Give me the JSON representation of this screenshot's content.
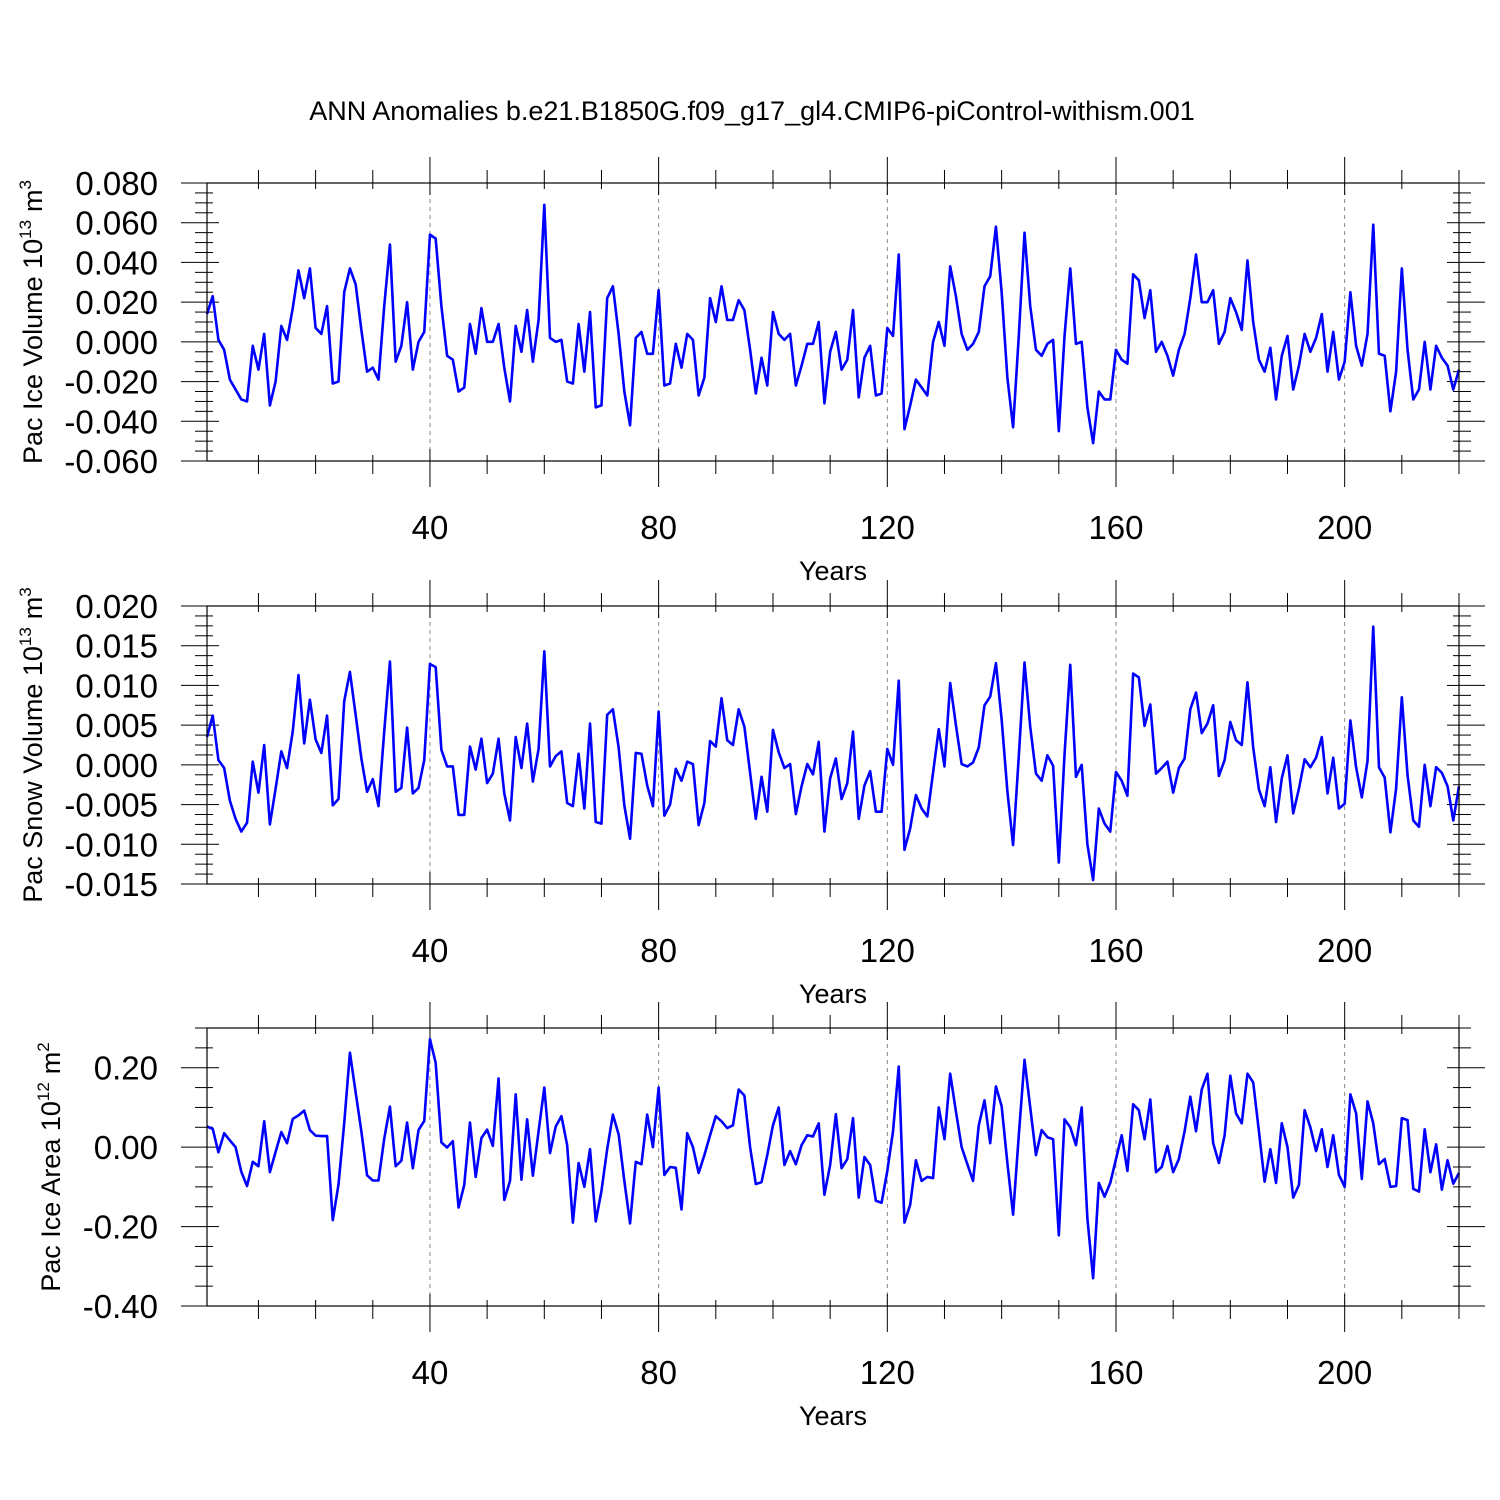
{
  "title": "ANN Anomalies b.e21.B1850G.f09_g17_gl4.CMIP6-piControl-withism.001",
  "line_color": "#0000ff",
  "chart_data": [
    {
      "type": "line",
      "ylabel_main": "Pac Ice Volume 10",
      "ylabel_exp": "13",
      "ylabel_unit": "m",
      "ylabel_unit_exp": "3",
      "xlabel": "Years",
      "xlim": [
        1,
        220
      ],
      "ylim": [
        -0.06,
        0.08
      ],
      "yticks": [
        -0.06,
        -0.04,
        -0.02,
        0.0,
        0.02,
        0.04,
        0.06,
        0.08
      ],
      "ytick_labels": [
        "-0.060",
        "-0.040",
        "-0.020",
        "0.000",
        "0.020",
        "0.040",
        "0.060",
        "0.080"
      ],
      "xticks": [
        40,
        80,
        120,
        160,
        200
      ],
      "xtick_labels": [
        "40",
        "80",
        "120",
        "160",
        "200"
      ],
      "grid": "dashed vertical at x ticks",
      "series": [
        {
          "values": [
            0.014,
            0.023,
            0.001,
            -0.004,
            -0.019,
            -0.024,
            -0.029,
            -0.03,
            -0.002,
            -0.014,
            0.004,
            -0.032,
            -0.02,
            0.008,
            0.001,
            0.017,
            0.036,
            0.022,
            0.037,
            0.007,
            0.004,
            0.018,
            -0.021,
            -0.02,
            0.025,
            0.037,
            0.029,
            0.006,
            -0.015,
            -0.013,
            -0.019,
            0.018,
            0.049,
            -0.01,
            -0.002,
            0.02,
            -0.014,
            0.0,
            0.005,
            0.054,
            0.052,
            0.018,
            -0.007,
            -0.009,
            -0.025,
            -0.023,
            0.009,
            -0.006,
            0.017,
            0.0,
            0.0,
            0.009,
            -0.013,
            -0.03,
            0.008,
            -0.005,
            0.016,
            -0.01,
            0.011,
            0.069,
            0.002,
            0.0,
            0.001,
            -0.02,
            -0.021,
            0.009,
            -0.015,
            0.015,
            -0.033,
            -0.032,
            0.022,
            0.028,
            0.004,
            -0.025,
            -0.042,
            0.002,
            0.005,
            -0.006,
            -0.006,
            0.026,
            -0.022,
            -0.021,
            -0.001,
            -0.013,
            0.004,
            0.001,
            -0.027,
            -0.018,
            0.022,
            0.01,
            0.028,
            0.011,
            0.011,
            0.021,
            0.016,
            -0.004,
            -0.026,
            -0.008,
            -0.022,
            0.015,
            0.004,
            0.001,
            0.004,
            -0.022,
            -0.012,
            -0.001,
            -0.001,
            0.01,
            -0.031,
            -0.005,
            0.005,
            -0.014,
            -0.009,
            0.016,
            -0.028,
            -0.008,
            -0.002,
            -0.027,
            -0.026,
            0.007,
            0.003,
            0.044,
            -0.044,
            -0.032,
            -0.019,
            -0.023,
            -0.027,
            0.0,
            0.01,
            -0.002,
            0.038,
            0.023,
            0.004,
            -0.004,
            -0.001,
            0.005,
            0.028,
            0.033,
            0.058,
            0.025,
            -0.018,
            -0.043,
            0.003,
            0.055,
            0.018,
            -0.004,
            -0.007,
            -0.001,
            0.001,
            -0.045,
            0.003,
            0.037,
            -0.001,
            0.0,
            -0.033,
            -0.051,
            -0.025,
            -0.029,
            -0.029,
            -0.004,
            -0.009,
            -0.011,
            0.034,
            0.031,
            0.012,
            0.026,
            -0.005,
            0.0,
            -0.007,
            -0.017,
            -0.004,
            0.004,
            0.022,
            0.044,
            0.02,
            0.02,
            0.026,
            -0.001,
            0.005,
            0.022,
            0.015,
            0.006,
            0.041,
            0.01,
            -0.009,
            -0.015,
            -0.003,
            -0.029,
            -0.007,
            0.003,
            -0.024,
            -0.012,
            0.004,
            -0.005,
            0.002,
            0.014,
            -0.015,
            0.005,
            -0.019,
            -0.01,
            0.025,
            -0.002,
            -0.012,
            0.004,
            0.059,
            -0.006,
            -0.007,
            -0.035,
            -0.015,
            0.037,
            -0.004,
            -0.029,
            -0.024,
            0.0,
            -0.024,
            -0.002,
            -0.008,
            -0.012,
            -0.024,
            -0.014
          ]
        }
      ]
    },
    {
      "type": "line",
      "ylabel_main": "Pac Snow Volume 10",
      "ylabel_exp": "13",
      "ylabel_unit": "m",
      "ylabel_unit_exp": "3",
      "xlabel": "Years",
      "xlim": [
        1,
        220
      ],
      "ylim": [
        -0.015,
        0.02
      ],
      "yticks": [
        -0.015,
        -0.01,
        -0.005,
        0.0,
        0.005,
        0.01,
        0.015,
        0.02
      ],
      "ytick_labels": [
        "-0.015",
        "-0.010",
        "-0.005",
        "0.000",
        "0.005",
        "0.010",
        "0.015",
        "0.020"
      ],
      "xticks": [
        40,
        80,
        120,
        160,
        200
      ],
      "xtick_labels": [
        "40",
        "80",
        "120",
        "160",
        "200"
      ],
      "grid": "dashed vertical at x ticks",
      "series": [
        {
          "values": [
            0.0035,
            0.0062,
            0.0006,
            -0.0004,
            -0.0045,
            -0.0068,
            -0.0084,
            -0.0073,
            0.0004,
            -0.0035,
            0.0025,
            -0.0075,
            -0.003,
            0.0017,
            -0.0004,
            0.0042,
            0.0113,
            0.0027,
            0.0082,
            0.0032,
            0.0015,
            0.0062,
            -0.0051,
            -0.0043,
            0.008,
            0.0117,
            0.0063,
            0.0008,
            -0.0034,
            -0.0018,
            -0.0052,
            0.0042,
            0.013,
            -0.0034,
            -0.0029,
            0.0047,
            -0.0036,
            -0.0029,
            0.0006,
            0.0127,
            0.0123,
            0.0019,
            -0.0002,
            -0.0002,
            -0.0063,
            -0.0063,
            0.0023,
            -0.0006,
            0.0033,
            -0.0023,
            -0.0011,
            0.0033,
            -0.0036,
            -0.007,
            0.0035,
            -0.0004,
            0.0052,
            -0.0021,
            0.002,
            0.0143,
            -0.0002,
            0.0011,
            0.0017,
            -0.0048,
            -0.0052,
            0.0014,
            -0.0055,
            0.0052,
            -0.0072,
            -0.0074,
            0.0063,
            0.007,
            0.0022,
            -0.0051,
            -0.0093,
            0.0015,
            0.0014,
            -0.0026,
            -0.0052,
            0.0067,
            -0.0064,
            -0.005,
            -0.0005,
            -0.002,
            0.0004,
            0.0001,
            -0.0076,
            -0.0048,
            0.003,
            0.0023,
            0.0084,
            0.0031,
            0.0025,
            0.007,
            0.0048,
            -0.001,
            -0.0068,
            -0.0015,
            -0.0059,
            0.0044,
            0.0016,
            -0.0004,
            0.0001,
            -0.0062,
            -0.0027,
            0.0001,
            -0.0012,
            0.0029,
            -0.0084,
            -0.0017,
            0.0008,
            -0.0043,
            -0.0023,
            0.0042,
            -0.0068,
            -0.0026,
            -0.0008,
            -0.0059,
            -0.0059,
            0.002,
            0.0,
            0.0106,
            -0.0107,
            -0.008,
            -0.0038,
            -0.0055,
            -0.0065,
            -0.001,
            0.0045,
            -0.0002,
            0.0103,
            0.005,
            0.0001,
            -0.0002,
            0.0003,
            0.0022,
            0.0075,
            0.0086,
            0.0128,
            0.0057,
            -0.0033,
            -0.0101,
            0.0011,
            0.0129,
            0.0048,
            -0.0011,
            -0.002,
            0.0012,
            -0.0001,
            -0.0123,
            0.0013,
            0.0126,
            -0.0015,
            0.0,
            -0.01,
            -0.0145,
            -0.0055,
            -0.0074,
            -0.0084,
            -0.0009,
            -0.002,
            -0.0039,
            0.0115,
            0.011,
            0.0049,
            0.0076,
            -0.0011,
            -0.0004,
            0.0004,
            -0.0035,
            -0.0004,
            0.0008,
            0.007,
            0.0091,
            0.004,
            0.0052,
            0.0075,
            -0.0014,
            0.0006,
            0.0054,
            0.0031,
            0.0025,
            0.0104,
            0.0022,
            -0.0031,
            -0.0052,
            -0.0003,
            -0.0072,
            -0.0017,
            0.0012,
            -0.0061,
            -0.003,
            0.0007,
            -0.0003,
            0.0009,
            0.0035,
            -0.0036,
            0.0009,
            -0.0055,
            -0.0049,
            0.0056,
            -0.0003,
            -0.0041,
            0.0005,
            0.0174,
            -0.0003,
            -0.0016,
            -0.0085,
            -0.003,
            0.0085,
            -0.0013,
            -0.007,
            -0.0078,
            0.0,
            -0.0052,
            -0.0003,
            -0.001,
            -0.0027,
            -0.007,
            -0.0027
          ]
        }
      ]
    },
    {
      "type": "line",
      "ylabel_main": "Pac Ice Area 10",
      "ylabel_exp": "12",
      "ylabel_unit": "m",
      "ylabel_unit_exp": "2",
      "xlabel": "Years",
      "xlim": [
        1,
        220
      ],
      "ylim": [
        -0.4,
        0.3
      ],
      "yticks": [
        -0.4,
        -0.2,
        0.0,
        0.2
      ],
      "ytick_labels": [
        "-0.40",
        "-0.20",
        "0.00",
        "0.20"
      ],
      "xticks": [
        40,
        80,
        120,
        160,
        200
      ],
      "xtick_labels": [
        "40",
        "80",
        "120",
        "160",
        "200"
      ],
      "grid": "dashed vertical at x ticks",
      "series": [
        {
          "values": [
            0.052,
            0.046,
            -0.013,
            0.035,
            0.017,
            0.0,
            -0.062,
            -0.098,
            -0.037,
            -0.048,
            0.065,
            -0.063,
            -0.012,
            0.038,
            0.01,
            0.071,
            0.08,
            0.092,
            0.043,
            0.029,
            0.028,
            0.028,
            -0.184,
            -0.094,
            0.06,
            0.238,
            0.138,
            0.04,
            -0.071,
            -0.084,
            -0.084,
            0.021,
            0.102,
            -0.048,
            -0.034,
            0.062,
            -0.053,
            0.043,
            0.066,
            0.272,
            0.212,
            0.012,
            -0.001,
            0.015,
            -0.152,
            -0.095,
            0.062,
            -0.075,
            0.023,
            0.044,
            0.003,
            0.173,
            -0.133,
            -0.085,
            0.133,
            -0.082,
            0.07,
            -0.072,
            0.04,
            0.15,
            -0.015,
            0.052,
            0.078,
            0.005,
            -0.19,
            -0.04,
            -0.1,
            -0.005,
            -0.187,
            -0.11,
            -0.005,
            0.082,
            0.032,
            -0.085,
            -0.192,
            -0.037,
            -0.043,
            0.082,
            0.0,
            0.15,
            -0.07,
            -0.05,
            -0.052,
            -0.157,
            0.035,
            0.0,
            -0.065,
            -0.02,
            0.03,
            0.078,
            0.065,
            0.048,
            0.055,
            0.145,
            0.13,
            0.0,
            -0.093,
            -0.088,
            -0.02,
            0.055,
            0.1,
            -0.045,
            -0.01,
            -0.043,
            0.005,
            0.03,
            0.027,
            0.06,
            -0.12,
            -0.045,
            0.083,
            -0.053,
            -0.03,
            0.073,
            -0.127,
            -0.025,
            -0.045,
            -0.135,
            -0.14,
            -0.06,
            0.04,
            0.203,
            -0.19,
            -0.145,
            -0.033,
            -0.085,
            -0.075,
            -0.078,
            0.1,
            0.02,
            0.185,
            0.09,
            0.0,
            -0.043,
            -0.085,
            0.055,
            0.118,
            0.01,
            0.153,
            0.103,
            -0.04,
            -0.17,
            0.03,
            0.22,
            0.1,
            -0.02,
            0.043,
            0.025,
            0.02,
            -0.222,
            0.07,
            0.05,
            0.005,
            0.1,
            -0.18,
            -0.33,
            -0.09,
            -0.125,
            -0.09,
            -0.03,
            0.03,
            -0.06,
            0.108,
            0.093,
            0.02,
            0.12,
            -0.063,
            -0.05,
            0.003,
            -0.063,
            -0.03,
            0.04,
            0.127,
            0.04,
            0.145,
            0.185,
            0.01,
            -0.04,
            0.03,
            0.18,
            0.085,
            0.06,
            0.185,
            0.163,
            0.04,
            -0.087,
            -0.005,
            -0.09,
            0.06,
            0.0,
            -0.127,
            -0.095,
            0.093,
            0.05,
            -0.01,
            0.045,
            -0.05,
            0.03,
            -0.07,
            -0.1,
            0.133,
            0.085,
            -0.08,
            0.115,
            0.06,
            -0.043,
            -0.03,
            -0.1,
            -0.098,
            0.073,
            0.068,
            -0.105,
            -0.112,
            0.045,
            -0.063,
            0.007,
            -0.107,
            -0.033,
            -0.092,
            -0.065
          ]
        }
      ]
    }
  ]
}
